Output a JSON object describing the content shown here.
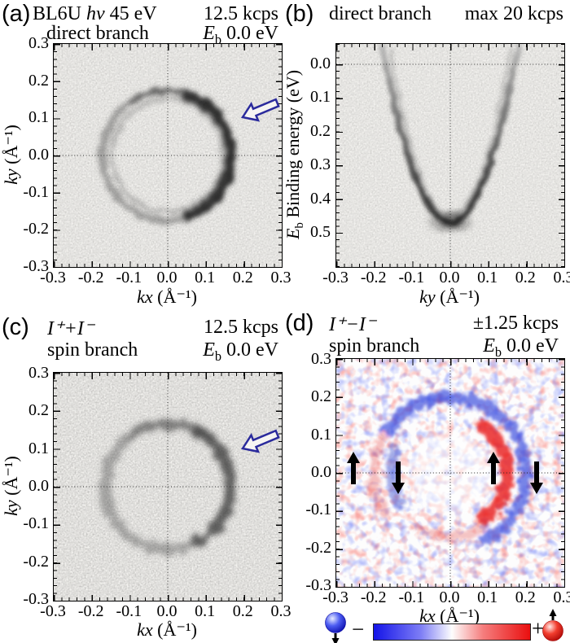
{
  "panels": {
    "a": {
      "label": "(a)",
      "pre": "BL6U ",
      "hnu": "hν",
      "post": " 45 eV",
      "count": "12.5 kcps",
      "branch": "direct branch",
      "eb": {
        "sym": "E",
        "sub": "b",
        "val": " 0.0 eV"
      },
      "xlab": {
        "it": "kx",
        "rest": " (Å⁻¹)"
      },
      "ylab": {
        "it": "ky",
        "rest": " (Å⁻¹)"
      },
      "xticks": [
        "-0.3",
        "-0.2",
        "-0.1",
        "0.0",
        "0.1",
        "0.2",
        "0.3"
      ],
      "yticks": [
        "0.3",
        "0.2",
        "0.1",
        "0.0",
        "-0.1",
        "-0.2",
        "-0.3"
      ]
    },
    "b": {
      "label": "(b)",
      "branch": "direct branch",
      "count": "max 20 kcps",
      "xlab": {
        "it": "ky",
        "rest": " (Å⁻¹)"
      },
      "ylab": {
        "sym": "E",
        "sub": "b",
        "rest": " Binding energy (eV)"
      },
      "xticks": [
        "-0.3",
        "-0.2",
        "-0.1",
        "0.0",
        "0.1",
        "0.2",
        "0.3"
      ],
      "yticks": [
        "0.0",
        "0.1",
        "0.2",
        "0.3",
        "0.4",
        "0.5"
      ]
    },
    "c": {
      "label": "(c)",
      "intensity": "I⁺+I⁻",
      "branch": "spin branch",
      "count": "12.5 kcps",
      "eb": {
        "sym": "E",
        "sub": "b",
        "val": " 0.0 eV"
      },
      "xlab": {
        "it": "kx",
        "rest": " (Å⁻¹)"
      },
      "ylab": {
        "it": "ky",
        "rest": " (Å⁻¹)"
      },
      "xticks": [
        "-0.3",
        "-0.2",
        "-0.1",
        "0.0",
        "0.1",
        "0.2",
        "0.3"
      ],
      "yticks": [
        "0.3",
        "0.2",
        "0.1",
        "0.0",
        "-0.1",
        "-0.2",
        "-0.3"
      ]
    },
    "d": {
      "label": "(d)",
      "intensity": "I⁺−I⁻",
      "branch": "spin branch",
      "count": "±1.25 kcps",
      "eb": {
        "sym": "E",
        "sub": "b",
        "val": " 0.0 eV"
      },
      "xlab": {
        "it": "kx",
        "rest": " (Å⁻¹)"
      },
      "xticks": [
        "-0.3",
        "-0.2",
        "-0.1",
        "0.0",
        "0.1",
        "0.2",
        "0.3"
      ],
      "yticks": [
        "0.3",
        "0.2",
        "0.1",
        "0.0",
        "-0.1",
        "-0.2",
        "-0.3"
      ],
      "colorbar": {
        "minus": "−",
        "plus": "+"
      }
    }
  },
  "chart_data": [
    {
      "id": "a",
      "type": "heatmap",
      "title": "BL6U hν 45 eV, direct branch",
      "count_rate": "12.5 kcps",
      "binding_energy": "Eb 0.0 eV",
      "xlabel": "kx (Å⁻¹)",
      "ylabel": "ky (Å⁻¹)",
      "xlim": [
        -0.3,
        0.3
      ],
      "ylim": [
        -0.3,
        0.3
      ],
      "xtick_step": 0.1,
      "minor_tick_step": 0.02,
      "colormap": "inverted grayscale (dark = high intensity)",
      "grid": "dotted crosshair at kx=0 and ky=0",
      "features": {
        "shape": "Rashba-split Fermi-surface ring centered at origin",
        "outer_ring_radius_invA": 0.18,
        "inner_ring_radius_invA": 0.15,
        "intensity_maximum": "right side of ring (+kx ≈ 0.17)",
        "annotation": "open dark-blue arrow pointing at ring from upper right"
      }
    },
    {
      "id": "b",
      "type": "heatmap",
      "title": "direct branch",
      "count_rate": "max 20 kcps",
      "xlabel": "ky (Å⁻¹)",
      "ylabel": "Eb Binding energy (eV)",
      "xlim": [
        -0.3,
        0.3
      ],
      "ylim_eV": [
        0.6,
        -0.06
      ],
      "ytick_step": 0.1,
      "colormap": "inverted grayscale (dark = high intensity)",
      "grid": "dotted lines at Eb=0.0 and ky=0",
      "features": {
        "shape": "parabolic free-electron-like surface band",
        "band_bottom_eV": 0.47,
        "fermi_crossings_invA": [
          -0.17,
          0.17
        ],
        "note": "slight Rashba doubling along arms, strongest intensity near band bottom"
      }
    },
    {
      "id": "c",
      "type": "heatmap",
      "title": "I⁺+I⁻ spin branch",
      "count_rate": "12.5 kcps",
      "binding_energy": "Eb 0.0 eV",
      "xlabel": "kx (Å⁻¹)",
      "ylabel": "ky (Å⁻¹)",
      "xlim": [
        -0.3,
        0.3
      ],
      "ylim": [
        -0.3,
        0.3
      ],
      "colormap": "inverted grayscale (dark = high intensity)",
      "features": {
        "shape": "single diffuse Fermi ring (spin-integrated, noisier than panel a)",
        "ring_radius_invA": 0.17,
        "intensity_maximum": "right side (+kx)",
        "annotation": "open dark-blue arrow pointing at ring from upper right"
      }
    },
    {
      "id": "d",
      "type": "heatmap",
      "title": "I⁺−I⁻ spin branch",
      "count_rate": "±1.25 kcps",
      "binding_energy": "Eb 0.0 eV",
      "xlabel": "kx (Å⁻¹)",
      "xlim": [
        -0.3,
        0.3
      ],
      "ylim": [
        -0.3,
        0.3
      ],
      "colormap": "blue-white-red spin polarization",
      "features": {
        "right_inner_arc": "strong red (+) at kx ≈ 0.12–0.16",
        "right_outer_arc": "blue (−) at kx ≈ 0.18–0.24",
        "left_inner_arc": "blue (−) band at kx ≈ −0.15",
        "left_outer_arc": "faint red (+) at kx ≈ −0.20",
        "top_arc": "blue (−) at ky ≈ 0.20",
        "bottom_arc": "faint red (+)",
        "black_arrows_at_ky0": {
          "kx_invA": [
            -0.27,
            -0.14,
            0.12,
            0.22
          ],
          "directions": [
            "up",
            "down",
            "up",
            "down"
          ]
        }
      },
      "colorbar": {
        "negative_label": "−",
        "positive_label": "+",
        "min_color": "#1414e8",
        "max_color": "#ea0f0f",
        "negative_marker": "blue sphere with downward spin arrow",
        "positive_marker": "red sphere with upward spin arrow"
      }
    }
  ]
}
